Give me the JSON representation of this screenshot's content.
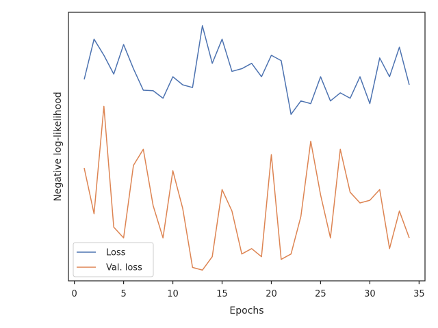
{
  "chart_data": {
    "type": "line",
    "title": "",
    "xlabel": "Epochs",
    "ylabel": "Negative log-likelihood",
    "x": [
      1,
      2,
      3,
      4,
      5,
      6,
      7,
      8,
      9,
      10,
      11,
      12,
      13,
      14,
      15,
      16,
      17,
      18,
      19,
      20,
      21,
      22,
      23,
      24,
      25,
      26,
      27,
      28,
      29,
      30,
      31,
      32,
      33,
      34
    ],
    "xlim": [
      -0.6,
      35.6
    ],
    "xticks": [
      0,
      5,
      10,
      15,
      20,
      25,
      30,
      35
    ],
    "ylim": [
      0,
      100
    ],
    "yticks_shown": false,
    "grid": false,
    "legend": "lower-left",
    "series": [
      {
        "name": "Loss",
        "color": "#4c72b0",
        "values": [
          75.0,
          90.0,
          84.0,
          77.0,
          88.0,
          79.0,
          71.0,
          70.8,
          68.0,
          76.0,
          73.0,
          72.0,
          95.0,
          81.0,
          90.0,
          78.0,
          79.0,
          81.0,
          76.0,
          84.0,
          82.0,
          62.0,
          67.0,
          66.0,
          76.0,
          67.0,
          70.0,
          68.0,
          76.0,
          66.0,
          83.0,
          76.0,
          87.0,
          73.0
        ]
      },
      {
        "name": "Val. loss",
        "color": "#dd8452",
        "values": [
          42.0,
          25.0,
          65.0,
          20.0,
          16.0,
          43.0,
          49.0,
          28.0,
          16.0,
          41.0,
          27.0,
          5.0,
          4.0,
          9.0,
          34.0,
          26.0,
          10.0,
          12.0,
          9.0,
          47.0,
          8.0,
          10.0,
          24.0,
          52.0,
          32.0,
          16.0,
          49.0,
          33.0,
          29.0,
          30.0,
          34.0,
          12.0,
          26.0,
          16.0
        ]
      }
    ]
  }
}
